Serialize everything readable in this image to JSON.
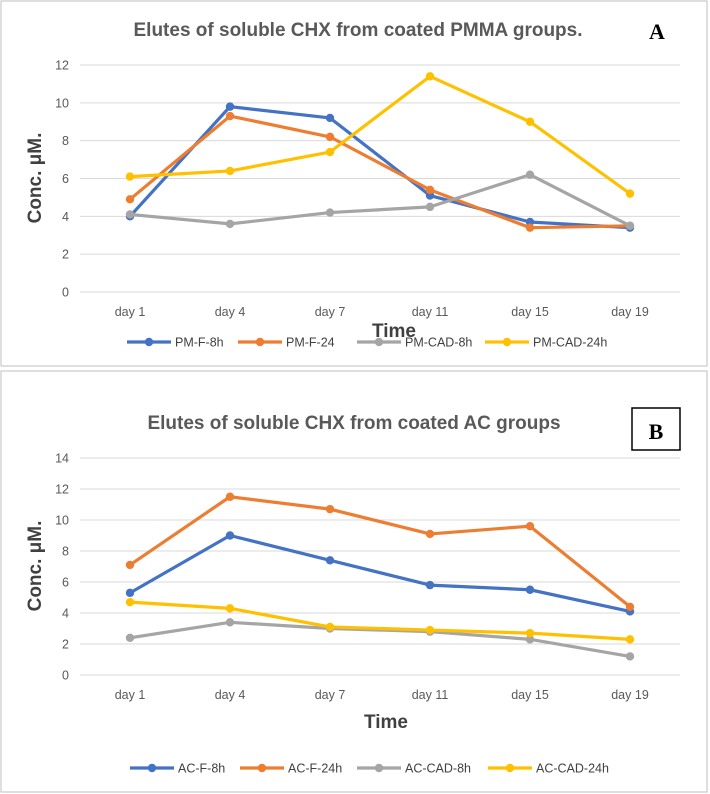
{
  "chart_data": [
    {
      "type": "line",
      "panel_label": "A",
      "title": "Elutes of soluble CHX from coated PMMA groups.",
      "xlabel": "Time",
      "ylabel": "Conc. μM.",
      "categories": [
        "day 1",
        "day 4",
        "day 7",
        "day 11",
        "day 15",
        "day 19"
      ],
      "ylim": [
        0,
        12
      ],
      "yticks": [
        0,
        2,
        4,
        6,
        8,
        10,
        12
      ],
      "grid": true,
      "legend_position": "bottom",
      "series": [
        {
          "name": "PM-F-8h",
          "color": "#4472c4",
          "values": [
            4.0,
            9.8,
            9.2,
            5.1,
            3.7,
            3.4
          ]
        },
        {
          "name": "PM-F-24",
          "color": "#ed7d31",
          "values": [
            4.9,
            9.3,
            8.2,
            5.4,
            3.4,
            3.5
          ]
        },
        {
          "name": "PM-CAD-8h",
          "color": "#a5a5a5",
          "values": [
            4.1,
            3.6,
            4.2,
            4.5,
            6.2,
            3.5
          ]
        },
        {
          "name": "PM-CAD-24h",
          "color": "#ffc000",
          "values": [
            6.1,
            6.4,
            7.4,
            11.4,
            9.0,
            5.2
          ]
        }
      ]
    },
    {
      "type": "line",
      "panel_label": "B",
      "title": "Elutes of soluble CHX from coated AC groups",
      "xlabel": "Time",
      "ylabel": "Conc. μM.",
      "categories": [
        "day 1",
        "day 4",
        "day 7",
        "day 11",
        "day 15",
        "day 19"
      ],
      "ylim": [
        0,
        14
      ],
      "yticks": [
        0,
        2,
        4,
        6,
        8,
        10,
        12,
        14
      ],
      "grid": true,
      "legend_position": "bottom",
      "series": [
        {
          "name": "AC-F-8h",
          "color": "#4472c4",
          "values": [
            5.3,
            9.0,
            7.4,
            5.8,
            5.5,
            4.1
          ]
        },
        {
          "name": "AC-F-24h",
          "color": "#ed7d31",
          "values": [
            7.1,
            11.5,
            10.7,
            9.1,
            9.6,
            4.4
          ]
        },
        {
          "name": "AC-CAD-8h",
          "color": "#a5a5a5",
          "values": [
            2.4,
            3.4,
            3.0,
            2.8,
            2.3,
            1.2
          ]
        },
        {
          "name": "AC-CAD-24h",
          "color": "#ffc000",
          "values": [
            4.7,
            4.3,
            3.1,
            2.9,
            2.7,
            2.3
          ]
        }
      ]
    }
  ]
}
